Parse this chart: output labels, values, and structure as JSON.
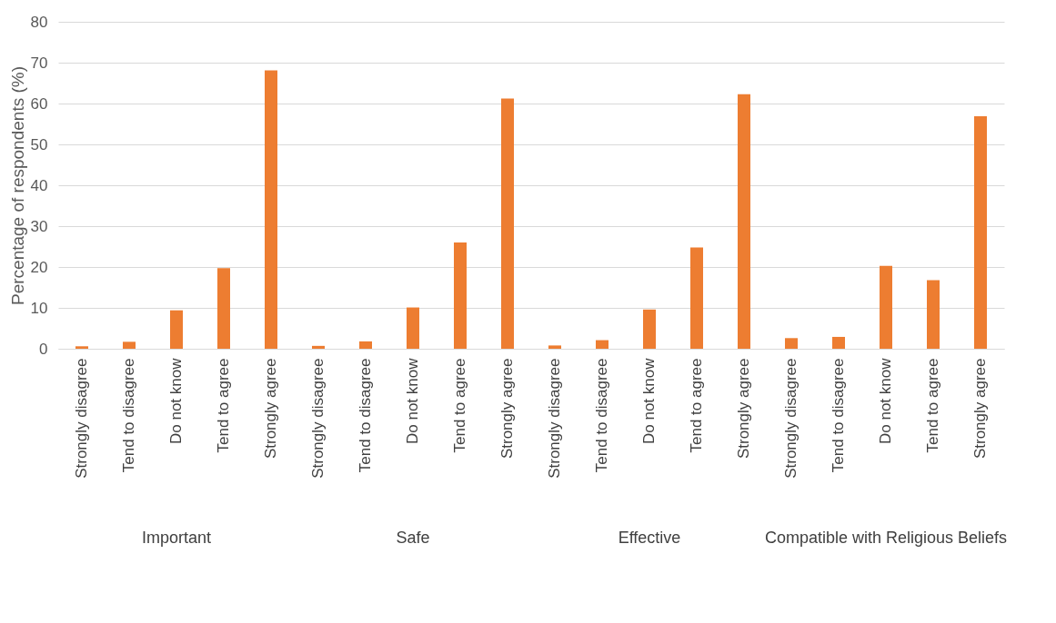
{
  "chart_data": {
    "type": "bar",
    "ylabel": "Percentage of respondents (%)",
    "categories": [
      "Strongly disagree",
      "Tend to disagree",
      "Do not know",
      "Tend to agree",
      "Strongly agree",
      "Strongly disagree",
      "Tend to disagree",
      "Do not know",
      "Tend to agree",
      "Strongly agree",
      "Strongly disagree",
      "Tend to disagree",
      "Do not know",
      "Tend to agree",
      "Strongly agree",
      "Strongly disagree",
      "Tend to disagree",
      "Do not know",
      "Tend to agree",
      "Strongly agree"
    ],
    "values": [
      0.6,
      1.7,
      9.4,
      19.7,
      68.1,
      0.7,
      1.8,
      10.1,
      26.0,
      61.2,
      0.8,
      2.1,
      9.6,
      24.8,
      62.3,
      2.6,
      2.9,
      20.3,
      16.8,
      56.9
    ],
    "color": "#ed7d31",
    "ylim": [
      0,
      80
    ],
    "yticks": [
      0,
      10,
      20,
      30,
      40,
      50,
      60,
      70,
      80
    ],
    "grid": "y",
    "annotations": [
      "Important",
      "Safe",
      "Effective",
      "Compatible with Religious Beliefs"
    ]
  }
}
